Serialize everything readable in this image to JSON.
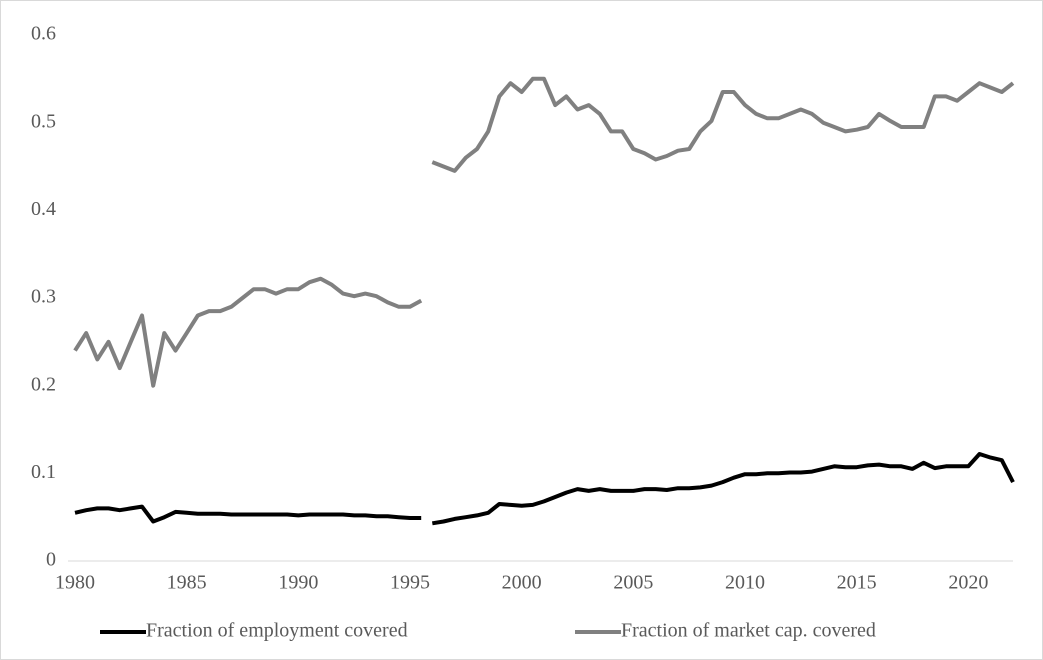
{
  "chart_data": {
    "type": "line",
    "x": [
      1980,
      1980.5,
      1981,
      1981.5,
      1982,
      1982.5,
      1983,
      1983.5,
      1984,
      1984.5,
      1985,
      1985.5,
      1986,
      1986.5,
      1987,
      1987.5,
      1988,
      1988.5,
      1989,
      1989.5,
      1990,
      1990.5,
      1991,
      1991.5,
      1992,
      1992.5,
      1993,
      1993.5,
      1994,
      1994.5,
      1995,
      1995.5,
      1995.75,
      1996,
      1996.5,
      1997,
      1997.5,
      1998,
      1998.5,
      1999,
      1999.5,
      2000,
      2000.5,
      2001,
      2001.5,
      2002,
      2002.5,
      2003,
      2003.5,
      2004,
      2004.5,
      2005,
      2005.5,
      2006,
      2006.5,
      2007,
      2007.5,
      2008,
      2008.5,
      2009,
      2009.5,
      2010,
      2010.5,
      2011,
      2011.5,
      2012,
      2012.5,
      2013,
      2013.5,
      2014,
      2014.5,
      2015,
      2015.5,
      2016,
      2016.5,
      2017,
      2017.5,
      2018,
      2018.5,
      2019,
      2019.5,
      2020,
      2020.5,
      2021,
      2021.5,
      2022
    ],
    "series": [
      {
        "name": "Fraction of employment covered",
        "color": "#000000",
        "values": [
          0.055,
          0.058,
          0.06,
          0.06,
          0.058,
          0.06,
          0.062,
          0.045,
          0.05,
          0.056,
          0.055,
          0.054,
          0.054,
          0.054,
          0.053,
          0.053,
          0.053,
          0.053,
          0.053,
          0.053,
          0.052,
          0.053,
          0.053,
          0.053,
          0.053,
          0.052,
          0.052,
          0.051,
          0.051,
          0.05,
          0.049,
          0.049,
          null,
          0.043,
          0.045,
          0.048,
          0.05,
          0.052,
          0.055,
          0.065,
          0.064,
          0.063,
          0.064,
          0.068,
          0.073,
          0.078,
          0.082,
          0.08,
          0.082,
          0.08,
          0.08,
          0.08,
          0.082,
          0.082,
          0.081,
          0.083,
          0.083,
          0.084,
          0.086,
          0.09,
          0.095,
          0.099,
          0.099,
          0.1,
          0.1,
          0.101,
          0.101,
          0.102,
          0.105,
          0.108,
          0.107,
          0.107,
          0.109,
          0.11,
          0.108,
          0.108,
          0.105,
          0.112,
          0.106,
          0.108,
          0.108,
          0.108,
          0.122,
          0.118,
          0.115,
          0.09
        ]
      },
      {
        "name": "Fraction of market cap. covered",
        "color": "#808080",
        "values": [
          0.24,
          0.26,
          0.23,
          0.25,
          0.22,
          0.25,
          0.28,
          0.2,
          0.26,
          0.24,
          0.26,
          0.28,
          0.285,
          0.285,
          0.29,
          0.3,
          0.31,
          0.31,
          0.305,
          0.31,
          0.31,
          0.318,
          0.322,
          0.315,
          0.305,
          0.302,
          0.305,
          0.302,
          0.295,
          0.29,
          0.29,
          0.297,
          null,
          0.455,
          0.45,
          0.445,
          0.46,
          0.47,
          0.49,
          0.53,
          0.545,
          0.535,
          0.55,
          0.55,
          0.52,
          0.53,
          0.515,
          0.52,
          0.51,
          0.49,
          0.49,
          0.47,
          0.465,
          0.458,
          0.462,
          0.468,
          0.47,
          0.49,
          0.502,
          0.535,
          0.535,
          0.52,
          0.51,
          0.505,
          0.505,
          0.51,
          0.515,
          0.51,
          0.5,
          0.495,
          0.49,
          0.492,
          0.495,
          0.51,
          0.502,
          0.495,
          0.495,
          0.495,
          0.53,
          0.53,
          0.525,
          0.535,
          0.545,
          0.54,
          0.535,
          0.545
        ]
      }
    ],
    "xlim": [
      1980,
      2022
    ],
    "xticks": [
      1980,
      1985,
      1990,
      1995,
      2000,
      2005,
      2010,
      2015,
      2020
    ],
    "ylim": [
      0,
      0.6
    ],
    "yticks": [
      0,
      0.1,
      0.2,
      0.3,
      0.4,
      0.5,
      0.6
    ],
    "legend": "bottom"
  }
}
